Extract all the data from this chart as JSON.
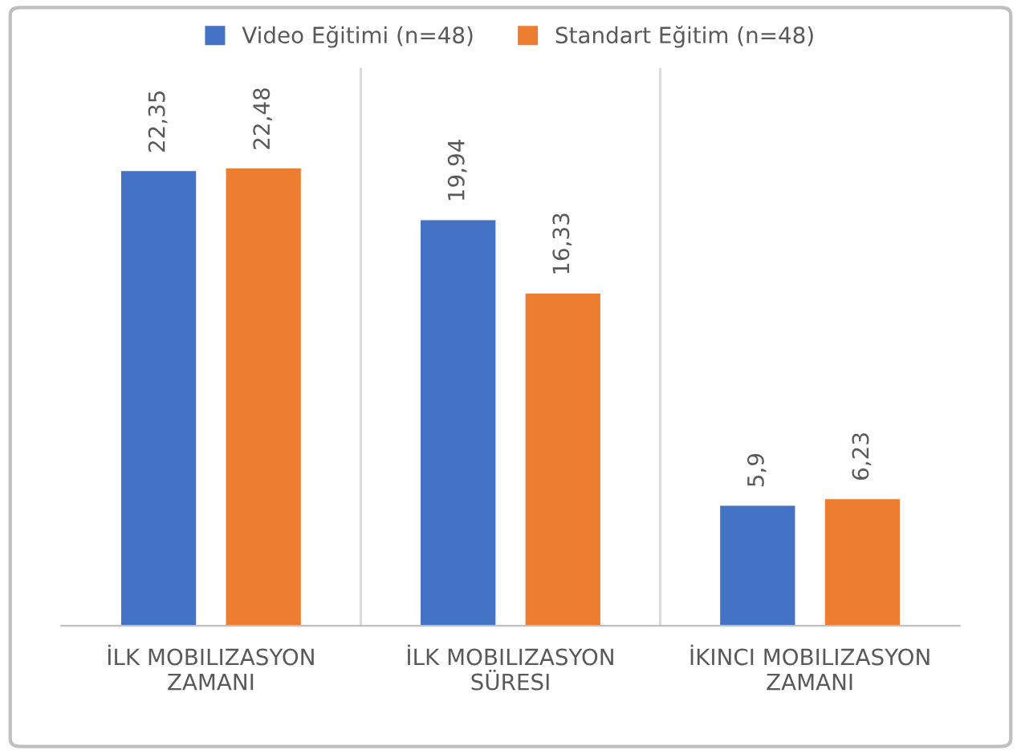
{
  "chart_data": {
    "type": "bar",
    "categories": [
      "İLK MOBILIZASYON\nZAMANI",
      "İLK MOBILIZASYON\nSÜRESI",
      "İKINCI MOBILIZASYON\nZAMANI"
    ],
    "series": [
      {
        "name": "Video Eğitimi (n=48)",
        "color": "#4472c4",
        "values": [
          22.35,
          19.94,
          5.9
        ],
        "value_labels": [
          "22,35",
          "19,94",
          "5,9"
        ]
      },
      {
        "name": "Standart Eğitim (n=48)",
        "color": "#ed7d31",
        "values": [
          22.48,
          16.33,
          6.23
        ],
        "value_labels": [
          "22,48",
          "16,33",
          "6,23"
        ]
      }
    ],
    "legend": "top",
    "grid": "x",
    "tick_labels": "x"
  }
}
